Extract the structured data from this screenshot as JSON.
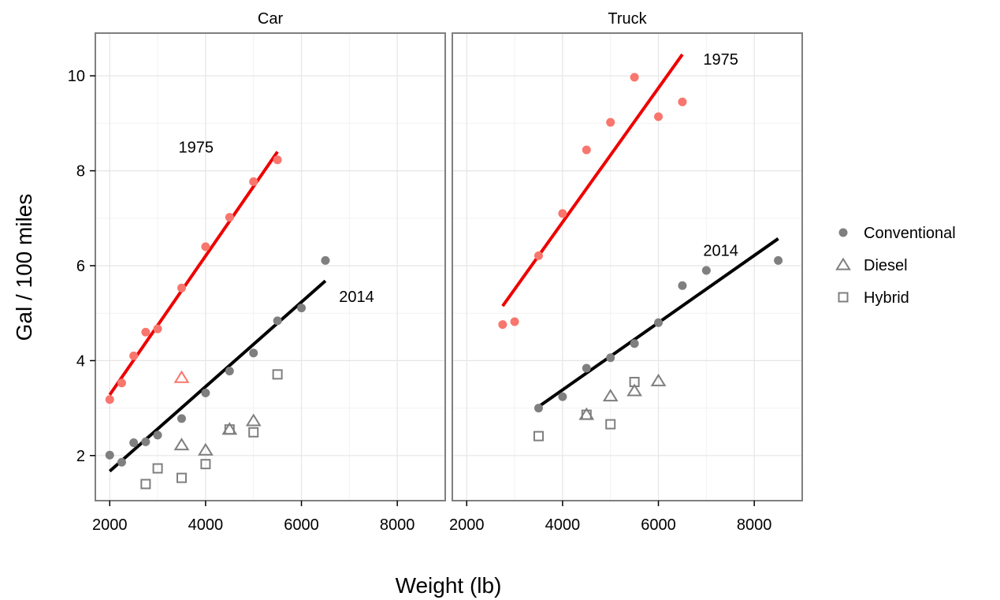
{
  "chart_data": {
    "type": "scatter",
    "xlabel": "Weight (lb)",
    "ylabel": "Gal / 100 miles",
    "xlim": [
      1700,
      9000
    ],
    "ylim": [
      1.05,
      10.9
    ],
    "xticks": [
      2000,
      4000,
      6000,
      8000
    ],
    "yticks": [
      2,
      4,
      6,
      8,
      10
    ],
    "xtick_labels": [
      "2000",
      "4000",
      "6000",
      "8000"
    ],
    "ytick_labels": [
      "2",
      "4",
      "6",
      "8",
      "10"
    ],
    "grid": true,
    "legend": {
      "position": "right",
      "entries": [
        {
          "label": "Conventional",
          "shape": "circle"
        },
        {
          "label": "Diesel",
          "shape": "triangle"
        },
        {
          "label": "Hybrid",
          "shape": "square"
        }
      ]
    },
    "colors": {
      "y1975": "#f8766d",
      "y2014": "#7f7f7f",
      "fit1975": "#ee0000",
      "fit2014": "#000000",
      "panel_border": "#7f7f7f",
      "grid": "#e5e5e5"
    },
    "panels": [
      {
        "title": "Car",
        "fits": [
          {
            "label": "1975",
            "color": "fit1975",
            "x": [
              2000,
              5500
            ],
            "y": [
              3.28,
              8.4
            ],
            "label_at": [
              3800,
              8.5
            ]
          },
          {
            "label": "2014",
            "color": "fit2014",
            "x": [
              2000,
              6500
            ],
            "y": [
              1.67,
              5.68
            ],
            "label_at": [
              7150,
              5.35
            ]
          }
        ],
        "points": [
          {
            "x": 2000,
            "y": 3.18,
            "shape": "circle",
            "year": "1975"
          },
          {
            "x": 2250,
            "y": 3.53,
            "shape": "circle",
            "year": "1975"
          },
          {
            "x": 2500,
            "y": 4.1,
            "shape": "circle",
            "year": "1975"
          },
          {
            "x": 2750,
            "y": 4.6,
            "shape": "circle",
            "year": "1975"
          },
          {
            "x": 3000,
            "y": 4.67,
            "shape": "circle",
            "year": "1975"
          },
          {
            "x": 3500,
            "y": 5.53,
            "shape": "circle",
            "year": "1975"
          },
          {
            "x": 4000,
            "y": 6.4,
            "shape": "circle",
            "year": "1975"
          },
          {
            "x": 4500,
            "y": 7.02,
            "shape": "circle",
            "year": "1975"
          },
          {
            "x": 5000,
            "y": 7.77,
            "shape": "circle",
            "year": "1975"
          },
          {
            "x": 5500,
            "y": 8.23,
            "shape": "circle",
            "year": "1975"
          },
          {
            "x": 3500,
            "y": 3.64,
            "shape": "triangle",
            "year": "1975"
          },
          {
            "x": 2000,
            "y": 2.01,
            "shape": "circle",
            "year": "2014"
          },
          {
            "x": 2250,
            "y": 1.86,
            "shape": "circle",
            "year": "2014"
          },
          {
            "x": 2500,
            "y": 2.27,
            "shape": "circle",
            "year": "2014"
          },
          {
            "x": 2750,
            "y": 2.29,
            "shape": "circle",
            "year": "2014"
          },
          {
            "x": 3000,
            "y": 2.43,
            "shape": "circle",
            "year": "2014"
          },
          {
            "x": 3500,
            "y": 2.78,
            "shape": "circle",
            "year": "2014"
          },
          {
            "x": 4000,
            "y": 3.32,
            "shape": "circle",
            "year": "2014"
          },
          {
            "x": 4500,
            "y": 3.78,
            "shape": "circle",
            "year": "2014"
          },
          {
            "x": 5000,
            "y": 4.16,
            "shape": "circle",
            "year": "2014"
          },
          {
            "x": 5500,
            "y": 4.84,
            "shape": "circle",
            "year": "2014"
          },
          {
            "x": 6000,
            "y": 5.11,
            "shape": "circle",
            "year": "2014"
          },
          {
            "x": 6500,
            "y": 6.11,
            "shape": "circle",
            "year": "2014"
          },
          {
            "x": 3500,
            "y": 2.22,
            "shape": "triangle",
            "year": "2014"
          },
          {
            "x": 4000,
            "y": 2.11,
            "shape": "triangle",
            "year": "2014"
          },
          {
            "x": 4500,
            "y": 2.55,
            "shape": "triangle",
            "year": "2014"
          },
          {
            "x": 5000,
            "y": 2.73,
            "shape": "triangle",
            "year": "2014"
          },
          {
            "x": 2750,
            "y": 1.4,
            "shape": "square",
            "year": "2014"
          },
          {
            "x": 3000,
            "y": 1.73,
            "shape": "square",
            "year": "2014"
          },
          {
            "x": 3500,
            "y": 1.53,
            "shape": "square",
            "year": "2014"
          },
          {
            "x": 4000,
            "y": 1.82,
            "shape": "square",
            "year": "2014"
          },
          {
            "x": 4500,
            "y": 2.55,
            "shape": "square",
            "year": "2014"
          },
          {
            "x": 5000,
            "y": 2.49,
            "shape": "square",
            "year": "2014"
          },
          {
            "x": 5500,
            "y": 3.71,
            "shape": "square",
            "year": "2014"
          }
        ]
      },
      {
        "title": "Truck",
        "fits": [
          {
            "label": "1975",
            "color": "fit1975",
            "x": [
              2750,
              6500
            ],
            "y": [
              5.15,
              10.45
            ],
            "label_at": [
              7300,
              10.35
            ]
          },
          {
            "label": "2014",
            "color": "fit2014",
            "x": [
              3500,
              8500
            ],
            "y": [
              3.03,
              6.57
            ],
            "label_at": [
              7300,
              6.32
            ]
          }
        ],
        "points": [
          {
            "x": 2750,
            "y": 4.76,
            "shape": "circle",
            "year": "1975"
          },
          {
            "x": 3000,
            "y": 4.82,
            "shape": "circle",
            "year": "1975"
          },
          {
            "x": 3500,
            "y": 6.21,
            "shape": "circle",
            "year": "1975"
          },
          {
            "x": 4000,
            "y": 7.1,
            "shape": "circle",
            "year": "1975"
          },
          {
            "x": 4500,
            "y": 8.44,
            "shape": "circle",
            "year": "1975"
          },
          {
            "x": 5000,
            "y": 9.02,
            "shape": "circle",
            "year": "1975"
          },
          {
            "x": 5500,
            "y": 9.97,
            "shape": "circle",
            "year": "1975"
          },
          {
            "x": 6000,
            "y": 9.14,
            "shape": "circle",
            "year": "1975"
          },
          {
            "x": 6500,
            "y": 9.45,
            "shape": "circle",
            "year": "1975"
          },
          {
            "x": 3500,
            "y": 3.0,
            "shape": "circle",
            "year": "2014"
          },
          {
            "x": 4000,
            "y": 3.24,
            "shape": "circle",
            "year": "2014"
          },
          {
            "x": 4500,
            "y": 3.84,
            "shape": "circle",
            "year": "2014"
          },
          {
            "x": 5000,
            "y": 4.06,
            "shape": "circle",
            "year": "2014"
          },
          {
            "x": 5500,
            "y": 4.36,
            "shape": "circle",
            "year": "2014"
          },
          {
            "x": 6000,
            "y": 4.8,
            "shape": "circle",
            "year": "2014"
          },
          {
            "x": 6500,
            "y": 5.58,
            "shape": "circle",
            "year": "2014"
          },
          {
            "x": 7000,
            "y": 5.9,
            "shape": "circle",
            "year": "2014"
          },
          {
            "x": 8500,
            "y": 6.11,
            "shape": "circle",
            "year": "2014"
          },
          {
            "x": 4500,
            "y": 2.86,
            "shape": "triangle",
            "year": "2014"
          },
          {
            "x": 5000,
            "y": 3.25,
            "shape": "triangle",
            "year": "2014"
          },
          {
            "x": 5500,
            "y": 3.36,
            "shape": "triangle",
            "year": "2014"
          },
          {
            "x": 6000,
            "y": 3.57,
            "shape": "triangle",
            "year": "2014"
          },
          {
            "x": 3500,
            "y": 2.41,
            "shape": "square",
            "year": "2014"
          },
          {
            "x": 4500,
            "y": 2.86,
            "shape": "square",
            "year": "2014"
          },
          {
            "x": 5000,
            "y": 2.66,
            "shape": "square",
            "year": "2014"
          },
          {
            "x": 5500,
            "y": 3.55,
            "shape": "square",
            "year": "2014"
          }
        ]
      }
    ]
  }
}
